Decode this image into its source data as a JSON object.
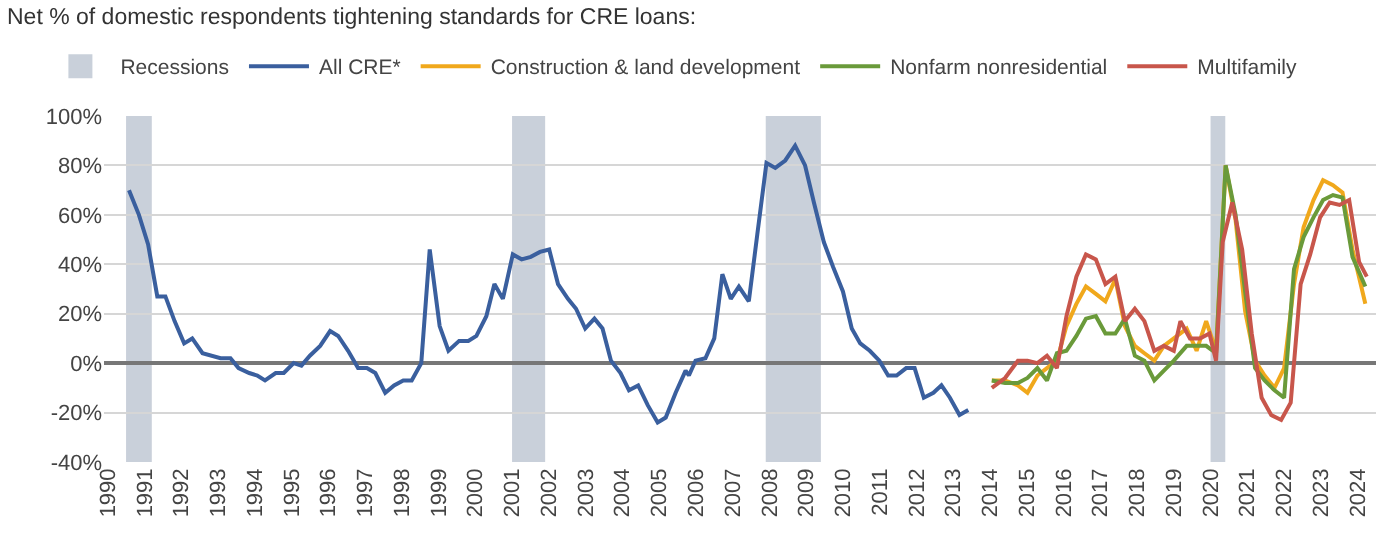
{
  "chart_data": {
    "type": "line",
    "title": "Net % of domestic respondents tightening standards for CRE loans:",
    "xlim": [
      1989.9,
      2024.5
    ],
    "xticks": [
      {
        "value": 1990,
        "label": "1990"
      },
      {
        "value": 1991,
        "label": "1991"
      },
      {
        "value": 1992,
        "label": "1992"
      },
      {
        "value": 1993,
        "label": "1993"
      },
      {
        "value": 1994,
        "label": "1994"
      },
      {
        "value": 1995,
        "label": "1995"
      },
      {
        "value": 1996,
        "label": "1996"
      },
      {
        "value": 1997,
        "label": "1997"
      },
      {
        "value": 1998,
        "label": "1998"
      },
      {
        "value": 1999,
        "label": "1999"
      },
      {
        "value": 2000,
        "label": "2000"
      },
      {
        "value": 2001,
        "label": "2001"
      },
      {
        "value": 2002,
        "label": "2002"
      },
      {
        "value": 2003,
        "label": "2003"
      },
      {
        "value": 2004,
        "label": "2004"
      },
      {
        "value": 2005,
        "label": "2005"
      },
      {
        "value": 2006,
        "label": "2006"
      },
      {
        "value": 2007,
        "label": "2007"
      },
      {
        "value": 2008,
        "label": "2008"
      },
      {
        "value": 2009,
        "label": "2009"
      },
      {
        "value": 2010,
        "label": "2010"
      },
      {
        "value": 2011,
        "label": "2011"
      },
      {
        "value": 2012,
        "label": "2012"
      },
      {
        "value": 2013,
        "label": "2013"
      },
      {
        "value": 2014,
        "label": "2014"
      },
      {
        "value": 2015,
        "label": "2015"
      },
      {
        "value": 2016,
        "label": "2016"
      },
      {
        "value": 2017,
        "label": "2017"
      },
      {
        "value": 2018,
        "label": "2018"
      },
      {
        "value": 2019,
        "label": "2019"
      },
      {
        "value": 2020,
        "label": "2020"
      },
      {
        "value": 2021,
        "label": "2021"
      },
      {
        "value": 2022,
        "label": "2022"
      },
      {
        "value": 2023,
        "label": "2023"
      },
      {
        "value": 2024,
        "label": "2024"
      }
    ],
    "ylim": [
      -40,
      100
    ],
    "yticks": [
      {
        "value": -40,
        "label": "-40%"
      },
      {
        "value": -20,
        "label": "-20%"
      },
      {
        "value": 0,
        "label": "0%"
      },
      {
        "value": 20,
        "label": "20%"
      },
      {
        "value": 40,
        "label": "40%"
      },
      {
        "value": 60,
        "label": "60%"
      },
      {
        "value": 80,
        "label": "80%"
      },
      {
        "value": 100,
        "label": "100%"
      }
    ],
    "grid": "y",
    "legend": "top",
    "line_style": "solid",
    "marker": "none",
    "bands": [
      {
        "axis": "x",
        "from": 1990.5,
        "to": 1991.2,
        "label": "Recessions",
        "color": "#c9d0da"
      },
      {
        "axis": "x",
        "from": 2001.0,
        "to": 2001.9,
        "color": "#c9d0da"
      },
      {
        "axis": "x",
        "from": 2007.9,
        "to": 2009.4,
        "color": "#c9d0da"
      },
      {
        "axis": "x",
        "from": 2020.0,
        "to": 2020.4,
        "color": "#c9d0da"
      }
    ],
    "series": [
      {
        "name": "All CRE*",
        "color": "#3a5f9e",
        "x": [
          1990.58,
          1990.85,
          1991.1,
          1991.35,
          1991.57,
          1991.82,
          1992.08,
          1992.3,
          1992.58,
          1993.07,
          1993.34,
          1993.56,
          1993.85,
          1994.07,
          1994.28,
          1994.57,
          1994.79,
          1995.06,
          1995.27,
          1995.5,
          1995.78,
          1996.05,
          1996.27,
          1996.54,
          1996.81,
          1997.05,
          1997.28,
          1997.55,
          1997.79,
          1998.04,
          1998.27,
          1998.53,
          1998.76,
          1999.03,
          1999.27,
          1999.56,
          1999.81,
          2000.03,
          2000.3,
          2000.52,
          2000.75,
          2001.02,
          2001.26,
          2001.51,
          2001.76,
          2002.01,
          2002.25,
          2002.52,
          2002.74,
          2002.99,
          2003.24,
          2003.46,
          2003.69,
          2003.95,
          2004.18,
          2004.43,
          2004.69,
          2004.96,
          2005.18,
          2005.45,
          2005.72,
          2005.81,
          2005.99,
          2006.26,
          2006.5,
          2006.72,
          2006.95,
          2007.17,
          2007.44,
          2007.67,
          2007.92,
          2008.16,
          2008.43,
          2008.7,
          2008.97,
          2009.21,
          2009.48,
          2009.73,
          2010.0,
          2010.24,
          2010.47,
          2010.73,
          2010.99,
          2011.23,
          2011.46,
          2011.72,
          2011.95,
          2012.2,
          2012.46,
          2012.68,
          2012.91,
          2013.17,
          2013.41
        ],
        "values": [
          70,
          60,
          48,
          27,
          27,
          17,
          8,
          10,
          4,
          2,
          2,
          -2,
          -4,
          -5,
          -7,
          -4,
          -4,
          0,
          -1,
          3,
          7,
          13,
          11,
          5,
          -2,
          -2,
          -4,
          -12,
          -9,
          -7,
          -7,
          0,
          46,
          15,
          5,
          9,
          9,
          11,
          19,
          32,
          26,
          44,
          42,
          43,
          45,
          46,
          32,
          26,
          22,
          14,
          18,
          14,
          1,
          -4,
          -11,
          -9,
          -17,
          -24,
          -22,
          -12,
          -3,
          -5,
          1,
          2,
          10,
          36,
          26,
          31,
          25,
          52,
          81,
          79,
          82,
          88,
          80,
          65,
          49,
          39,
          29,
          14,
          8,
          5,
          1,
          -5,
          -5,
          -2,
          -2,
          -14,
          -12,
          -9,
          -14,
          -21,
          -19
        ]
      },
      {
        "name": "Construction & land development",
        "color": "#f0a81c",
        "x": [
          2014.05,
          2014.41,
          2014.76,
          2015.02,
          2015.29,
          2015.55,
          2015.82,
          2016.08,
          2016.35,
          2016.61,
          2016.88,
          2017.14,
          2017.41,
          2017.67,
          2017.94,
          2018.2,
          2018.47,
          2018.73,
          2019.0,
          2019.35,
          2019.62,
          2019.88,
          2020.15,
          2020.41,
          2020.68,
          2020.94,
          2021.21,
          2021.47,
          2021.74,
          2022.0,
          2022.27,
          2022.53,
          2022.8,
          2023.06,
          2023.33,
          2023.59,
          2023.86,
          2024.21
        ],
        "values": [
          -7,
          -7,
          -9,
          -12,
          -5,
          -2,
          1,
          15,
          24,
          31,
          28,
          25,
          34,
          15,
          7,
          4,
          1,
          7,
          10,
          14,
          5,
          17,
          5,
          80,
          58,
          21,
          1,
          -5,
          -10,
          -2,
          32,
          55,
          66,
          74,
          72,
          69,
          46,
          24
        ]
      },
      {
        "name": "Nonfarm nonresidential",
        "color": "#6a9a3a",
        "x": [
          2014.05,
          2014.41,
          2014.76,
          2015.02,
          2015.29,
          2015.55,
          2015.82,
          2016.08,
          2016.35,
          2016.61,
          2016.88,
          2017.14,
          2017.41,
          2017.67,
          2017.94,
          2018.2,
          2018.47,
          2018.73,
          2019.0,
          2019.35,
          2019.62,
          2019.88,
          2020.15,
          2020.41,
          2020.68,
          2020.94,
          2021.21,
          2021.47,
          2021.74,
          2022.0,
          2022.27,
          2022.53,
          2022.8,
          2023.06,
          2023.33,
          2023.59,
          2023.86,
          2024.21
        ],
        "values": [
          -7,
          -8,
          -8,
          -6,
          -2,
          -7,
          4,
          5,
          11,
          18,
          19,
          12,
          12,
          18,
          3,
          1,
          -7,
          -3,
          1,
          7,
          7,
          7,
          4,
          80,
          60,
          29,
          -2,
          -7,
          -11,
          -14,
          38,
          51,
          59,
          66,
          68,
          67,
          43,
          31
        ]
      },
      {
        "name": "Multifamily",
        "color": "#c8564b",
        "x": [
          2014.05,
          2014.41,
          2014.76,
          2015.02,
          2015.29,
          2015.55,
          2015.82,
          2016.08,
          2016.35,
          2016.61,
          2016.88,
          2017.14,
          2017.41,
          2017.67,
          2017.94,
          2018.2,
          2018.47,
          2018.73,
          2019.0,
          2019.18,
          2019.44,
          2019.71,
          2019.97,
          2020.15,
          2020.33,
          2020.59,
          2020.86,
          2021.12,
          2021.39,
          2021.65,
          2021.92,
          2022.18,
          2022.45,
          2022.71,
          2022.98,
          2023.24,
          2023.51,
          2023.77,
          2024.04,
          2024.25
        ],
        "values": [
          -10,
          -6,
          1,
          1,
          0,
          3,
          -2,
          19,
          35,
          44,
          42,
          32,
          35,
          17,
          22,
          17,
          5,
          7,
          5,
          17,
          10,
          10,
          12,
          1,
          49,
          65,
          46,
          12,
          -14,
          -21,
          -23,
          -16,
          32,
          44,
          59,
          65,
          64,
          66,
          41,
          35
        ]
      }
    ]
  }
}
